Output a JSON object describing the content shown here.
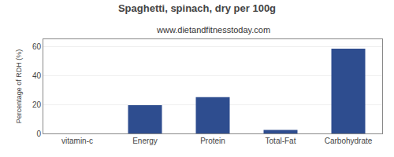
{
  "chart_data": {
    "type": "bar",
    "title": "Spaghetti, spinach, dry per 100g",
    "subtitle": "www.dietandfitnesstoday.com",
    "categories": [
      "vitamin-c",
      "Energy",
      "Protein",
      "Total-Fat",
      "Carbohydrate"
    ],
    "values": [
      0,
      19.5,
      25,
      2.5,
      58.5
    ],
    "color": "#2e4d8f",
    "ylabel": "Percentage of RDH (%)",
    "ylim": [
      0,
      65
    ],
    "yticks": [
      0,
      20,
      40,
      60
    ],
    "grid": true
  }
}
